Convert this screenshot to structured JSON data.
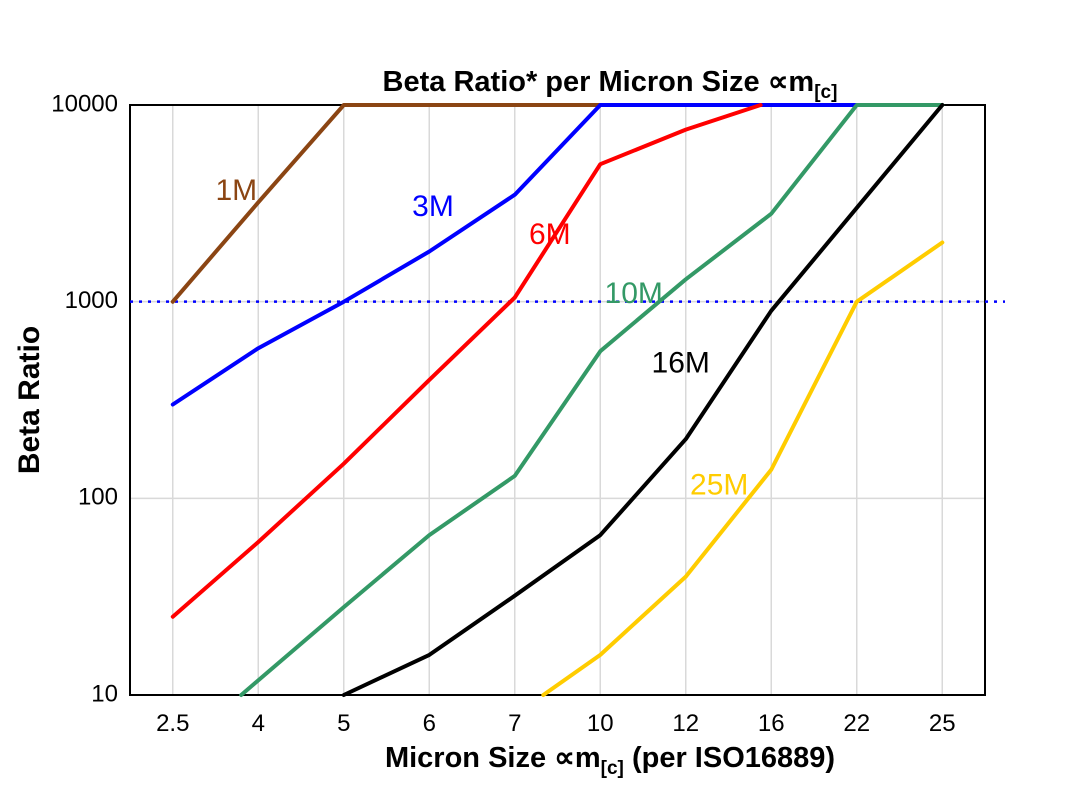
{
  "chart_data": {
    "type": "line",
    "title": "Beta Ratio* per Micron Size ∝m[c]",
    "title_parts": {
      "main": "Beta Ratio* per Micron Size ∝m",
      "sub": "[c]"
    },
    "xlabel": "Micron Size ∝m[c] (per ISO16889)",
    "xlabel_parts": {
      "pre": "Micron Size ∝m",
      "sub": "[c]",
      "post": " (per ISO16889)"
    },
    "ylabel": "Beta Ratio",
    "y_scale": "log",
    "ylim": [
      10,
      10000
    ],
    "y_ticks": [
      10,
      100,
      1000,
      10000
    ],
    "categories": [
      2.5,
      4,
      5,
      6,
      7,
      10,
      12,
      16,
      22,
      25
    ],
    "grid": true,
    "grid_color": "#d9d9d9",
    "border_color": "#000000",
    "reference_line": {
      "value": 1000,
      "color": "#0000ff",
      "style": "dotted"
    },
    "legend_position": "inline-labels",
    "series": [
      {
        "name": "1M",
        "color": "#8B4513",
        "points": [
          [
            2.5,
            1000
          ],
          [
            4,
            3200
          ],
          [
            5,
            10000
          ],
          [
            10,
            10000
          ]
        ],
        "label_at": [
          3.25,
          3600
        ]
      },
      {
        "name": "3M",
        "color": "#0000FF",
        "points": [
          [
            2.5,
            300
          ],
          [
            4,
            580
          ],
          [
            5,
            1000
          ],
          [
            6,
            1800
          ],
          [
            7,
            3500
          ],
          [
            10,
            10000
          ],
          [
            22,
            10000
          ]
        ],
        "label_at": [
          5.8,
          3000
        ]
      },
      {
        "name": "6M",
        "color": "#FF0000",
        "points": [
          [
            2.5,
            25
          ],
          [
            4,
            60
          ],
          [
            5,
            150
          ],
          [
            6,
            400
          ],
          [
            7,
            1050
          ],
          [
            10,
            5000
          ],
          [
            12,
            7500
          ],
          [
            15.5,
            10000
          ]
        ],
        "label_at": [
          7.5,
          2150
        ]
      },
      {
        "name": "10M",
        "color": "#339966",
        "points": [
          [
            3.7,
            10
          ],
          [
            5,
            28
          ],
          [
            6,
            65
          ],
          [
            7,
            130
          ],
          [
            10,
            560
          ],
          [
            12,
            1300
          ],
          [
            16,
            2800
          ],
          [
            22,
            10000
          ],
          [
            25,
            10000
          ]
        ],
        "label_at": [
          10.1,
          1080
        ]
      },
      {
        "name": "16M",
        "color": "#000000",
        "points": [
          [
            5,
            10
          ],
          [
            6,
            16
          ],
          [
            7,
            32
          ],
          [
            10,
            65
          ],
          [
            12,
            200
          ],
          [
            16,
            900
          ],
          [
            22,
            3000
          ],
          [
            25,
            10000
          ]
        ],
        "label_at": [
          11.2,
          480
        ]
      },
      {
        "name": "25M",
        "color": "#FFCC00",
        "points": [
          [
            8,
            10
          ],
          [
            10,
            16
          ],
          [
            12,
            40
          ],
          [
            16,
            140
          ],
          [
            22,
            1000
          ],
          [
            25,
            2000
          ]
        ],
        "label_at": [
          12.2,
          115
        ]
      }
    ]
  }
}
